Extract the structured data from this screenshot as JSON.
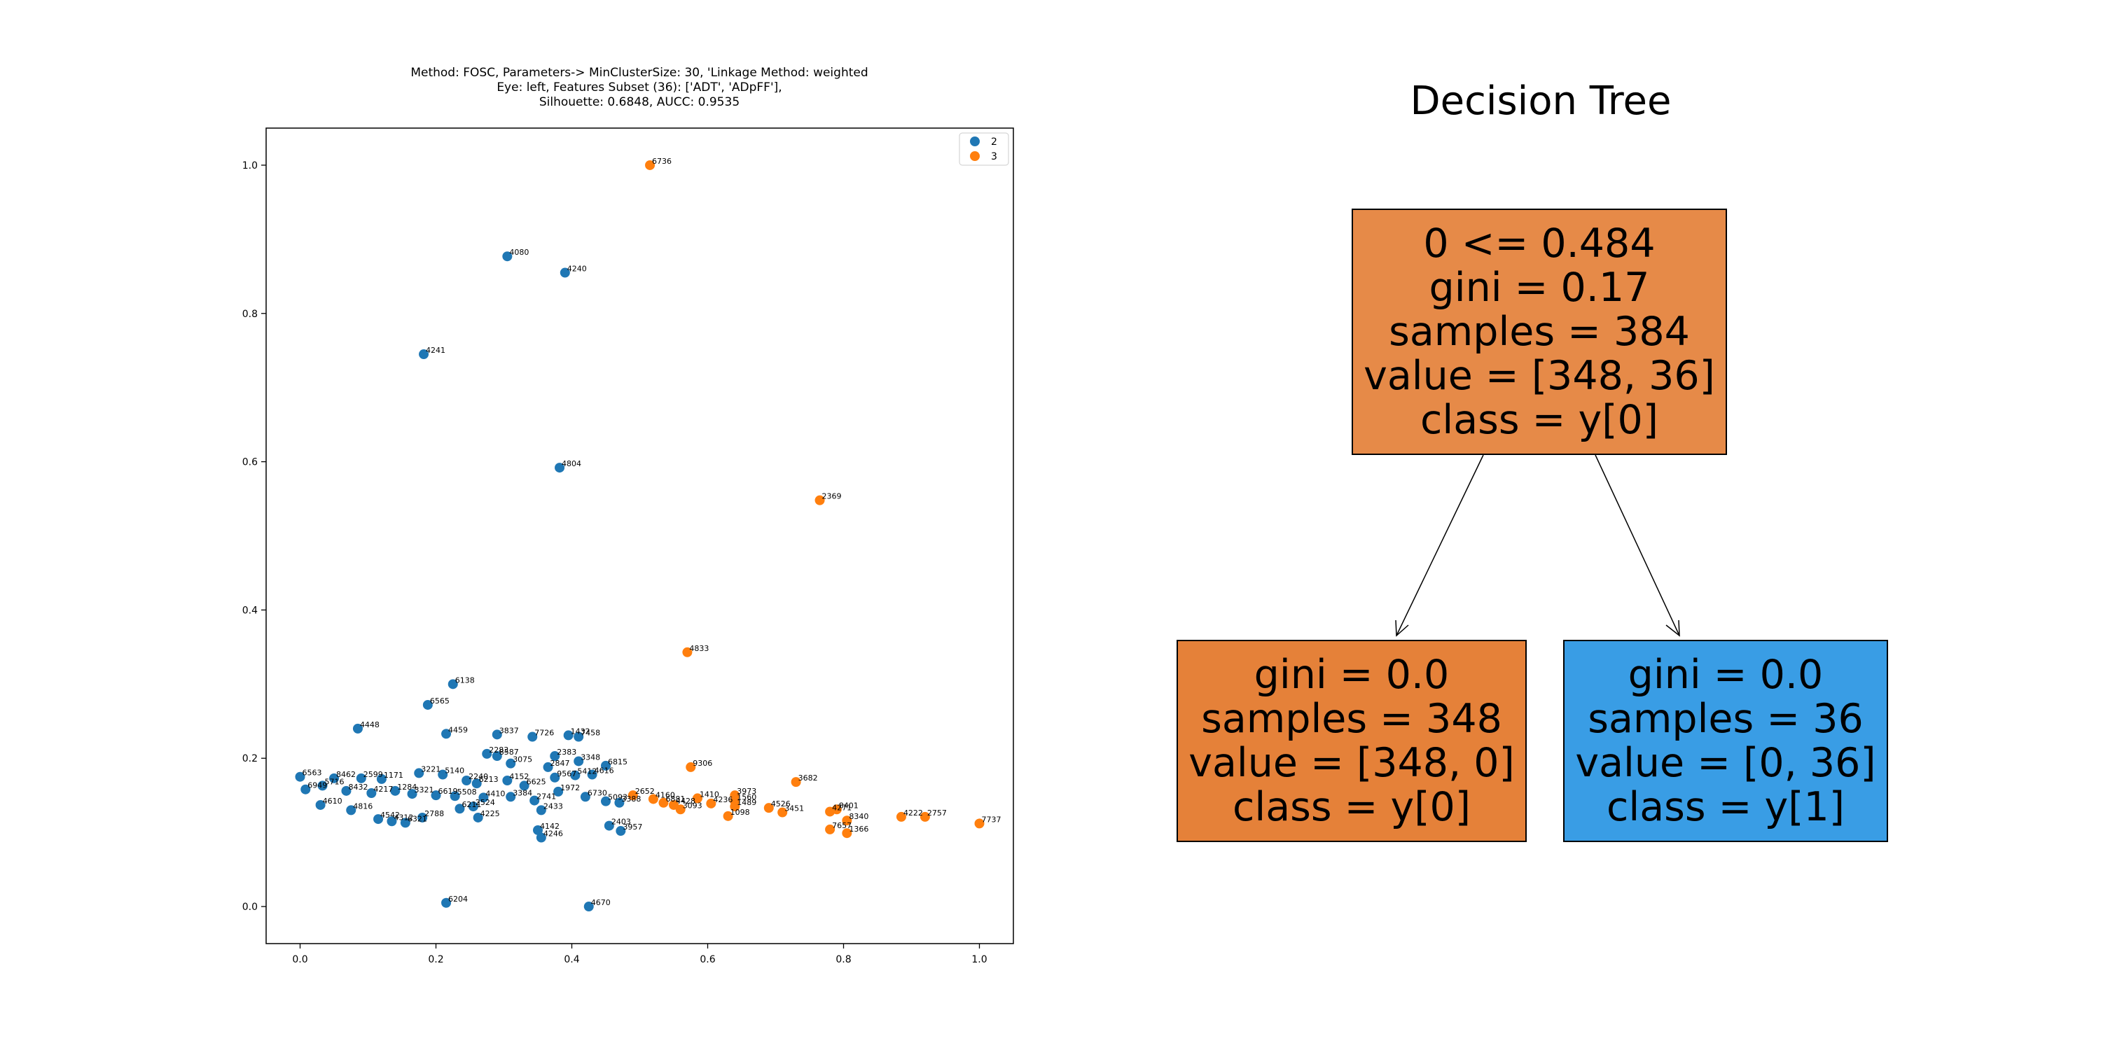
{
  "chart_data": [
    {
      "type": "scatter",
      "title_lines": [
        "Method: FOSC, Parameters-> MinClusterSize: 30, 'Linkage Method: weighted",
        "Eye: left, Features Subset (36): ['ADT', 'ADpFF'],",
        "Silhouette: 0.6848, AUCC: 0.9535"
      ],
      "xlim": [
        -0.05,
        1.05
      ],
      "ylim": [
        -0.05,
        1.05
      ],
      "x_ticks": [
        "0.0",
        "0.2",
        "0.4",
        "0.6",
        "0.8",
        "1.0"
      ],
      "y_ticks": [
        "0.0",
        "0.2",
        "0.4",
        "0.6",
        "0.8",
        "1.0"
      ],
      "grid": false,
      "legend": {
        "position": "top-right",
        "entries": [
          "2",
          "3"
        ]
      },
      "series": [
        {
          "name": "2",
          "color": "#1f77b4",
          "points": [
            {
              "x": 0.305,
              "y": 0.877,
              "label": "4080"
            },
            {
              "x": 0.39,
              "y": 0.855,
              "label": "4240"
            },
            {
              "x": 0.182,
              "y": 0.745,
              "label": "4241"
            },
            {
              "x": 0.382,
              "y": 0.592,
              "label": "4804"
            },
            {
              "x": 0.225,
              "y": 0.3,
              "label": "6138"
            },
            {
              "x": 0.188,
              "y": 0.272,
              "label": "6565"
            },
            {
              "x": 0.085,
              "y": 0.24,
              "label": "4448"
            },
            {
              "x": 0.215,
              "y": 0.233,
              "label": "4459"
            },
            {
              "x": 0.29,
              "y": 0.232,
              "label": "3837"
            },
            {
              "x": 0.342,
              "y": 0.229,
              "label": "7726"
            },
            {
              "x": 0.395,
              "y": 0.231,
              "label": "1432"
            },
            {
              "x": 0.41,
              "y": 0.229,
              "label": "7458"
            },
            {
              "x": 0.275,
              "y": 0.206,
              "label": "2283"
            },
            {
              "x": 0.29,
              "y": 0.203,
              "label": "8587"
            },
            {
              "x": 0.375,
              "y": 0.203,
              "label": "2383"
            },
            {
              "x": 0.41,
              "y": 0.196,
              "label": "3348"
            },
            {
              "x": 0.45,
              "y": 0.19,
              "label": "6815"
            },
            {
              "x": 0.31,
              "y": 0.193,
              "label": "3075"
            },
            {
              "x": 0.365,
              "y": 0.188,
              "label": "2847"
            },
            {
              "x": 0.0,
              "y": 0.175,
              "label": "6563"
            },
            {
              "x": 0.05,
              "y": 0.173,
              "label": "8462"
            },
            {
              "x": 0.09,
              "y": 0.173,
              "label": "2599"
            },
            {
              "x": 0.12,
              "y": 0.172,
              "label": "1171"
            },
            {
              "x": 0.175,
              "y": 0.18,
              "label": "3221"
            },
            {
              "x": 0.21,
              "y": 0.178,
              "label": "5140"
            },
            {
              "x": 0.245,
              "y": 0.17,
              "label": "2240"
            },
            {
              "x": 0.26,
              "y": 0.166,
              "label": "6213"
            },
            {
              "x": 0.305,
              "y": 0.17,
              "label": "4152"
            },
            {
              "x": 0.33,
              "y": 0.163,
              "label": "6625"
            },
            {
              "x": 0.375,
              "y": 0.174,
              "label": "9567"
            },
            {
              "x": 0.405,
              "y": 0.177,
              "label": "5412"
            },
            {
              "x": 0.43,
              "y": 0.178,
              "label": "4616"
            },
            {
              "x": 0.008,
              "y": 0.158,
              "label": "6949"
            },
            {
              "x": 0.033,
              "y": 0.163,
              "label": "5716"
            },
            {
              "x": 0.068,
              "y": 0.156,
              "label": "8432"
            },
            {
              "x": 0.105,
              "y": 0.153,
              "label": "4217"
            },
            {
              "x": 0.14,
              "y": 0.156,
              "label": "1284"
            },
            {
              "x": 0.165,
              "y": 0.152,
              "label": "3321"
            },
            {
              "x": 0.2,
              "y": 0.15,
              "label": "6619"
            },
            {
              "x": 0.228,
              "y": 0.149,
              "label": "5508"
            },
            {
              "x": 0.27,
              "y": 0.147,
              "label": "4410"
            },
            {
              "x": 0.31,
              "y": 0.148,
              "label": "3384"
            },
            {
              "x": 0.345,
              "y": 0.143,
              "label": "2741"
            },
            {
              "x": 0.38,
              "y": 0.155,
              "label": "1972"
            },
            {
              "x": 0.42,
              "y": 0.148,
              "label": "6730"
            },
            {
              "x": 0.45,
              "y": 0.142,
              "label": "5093"
            },
            {
              "x": 0.47,
              "y": 0.14,
              "label": "3388"
            },
            {
              "x": 0.03,
              "y": 0.137,
              "label": "4610"
            },
            {
              "x": 0.075,
              "y": 0.13,
              "label": "4816"
            },
            {
              "x": 0.115,
              "y": 0.118,
              "label": "4542"
            },
            {
              "x": 0.135,
              "y": 0.115,
              "label": "4312"
            },
            {
              "x": 0.155,
              "y": 0.113,
              "label": "6321"
            },
            {
              "x": 0.18,
              "y": 0.12,
              "label": "2788"
            },
            {
              "x": 0.235,
              "y": 0.132,
              "label": "6211"
            },
            {
              "x": 0.255,
              "y": 0.135,
              "label": "2524"
            },
            {
              "x": 0.262,
              "y": 0.12,
              "label": "4225"
            },
            {
              "x": 0.355,
              "y": 0.13,
              "label": "2433"
            },
            {
              "x": 0.35,
              "y": 0.103,
              "label": "4142"
            },
            {
              "x": 0.355,
              "y": 0.093,
              "label": "4246"
            },
            {
              "x": 0.455,
              "y": 0.109,
              "label": "2403"
            },
            {
              "x": 0.472,
              "y": 0.102,
              "label": "3957"
            },
            {
              "x": 0.215,
              "y": 0.005,
              "label": "6204"
            },
            {
              "x": 0.425,
              "y": 0.0,
              "label": "4670"
            }
          ]
        },
        {
          "name": "3",
          "color": "#ff7f0e",
          "points": [
            {
              "x": 0.515,
              "y": 1.0,
              "label": "6736"
            },
            {
              "x": 0.765,
              "y": 0.548,
              "label": "2369"
            },
            {
              "x": 0.57,
              "y": 0.343,
              "label": "4833"
            },
            {
              "x": 0.575,
              "y": 0.188,
              "label": "9306"
            },
            {
              "x": 0.73,
              "y": 0.168,
              "label": "3682"
            },
            {
              "x": 0.49,
              "y": 0.15,
              "label": "2652"
            },
            {
              "x": 0.52,
              "y": 0.145,
              "label": "4160"
            },
            {
              "x": 0.535,
              "y": 0.14,
              "label": "6881"
            },
            {
              "x": 0.55,
              "y": 0.137,
              "label": "4428"
            },
            {
              "x": 0.56,
              "y": 0.131,
              "label": "3093"
            },
            {
              "x": 0.585,
              "y": 0.146,
              "label": "1410"
            },
            {
              "x": 0.605,
              "y": 0.139,
              "label": "4236"
            },
            {
              "x": 0.64,
              "y": 0.15,
              "label": "3973"
            },
            {
              "x": 0.64,
              "y": 0.142,
              "label": "1560"
            },
            {
              "x": 0.64,
              "y": 0.135,
              "label": "1489"
            },
            {
              "x": 0.63,
              "y": 0.122,
              "label": "1098"
            },
            {
              "x": 0.69,
              "y": 0.133,
              "label": "4526"
            },
            {
              "x": 0.71,
              "y": 0.127,
              "label": "3451"
            },
            {
              "x": 0.78,
              "y": 0.128,
              "label": "4271"
            },
            {
              "x": 0.79,
              "y": 0.131,
              "label": "8401"
            },
            {
              "x": 0.805,
              "y": 0.116,
              "label": "8340"
            },
            {
              "x": 0.78,
              "y": 0.104,
              "label": "7657"
            },
            {
              "x": 0.805,
              "y": 0.099,
              "label": "1366"
            },
            {
              "x": 0.885,
              "y": 0.121,
              "label": "4222"
            },
            {
              "x": 0.92,
              "y": 0.121,
              "label": "2757"
            },
            {
              "x": 1.0,
              "y": 0.112,
              "label": "7737"
            }
          ]
        }
      ]
    },
    {
      "type": "tree",
      "title": "Decision Tree",
      "nodes": [
        {
          "lines": [
            "0 <= 0.484",
            "gini = 0.17",
            "samples = 384",
            "value = [348, 36]",
            "class = y[0]"
          ],
          "color": "#e68a48"
        },
        {
          "lines": [
            "gini = 0.0",
            "samples = 348",
            "value = [348, 0]",
            "class = y[0]"
          ],
          "color": "#e58139"
        },
        {
          "lines": [
            "gini = 0.0",
            "samples = 36",
            "value = [0, 36]",
            "class = y[1]"
          ],
          "color": "#399de5"
        }
      ]
    }
  ]
}
